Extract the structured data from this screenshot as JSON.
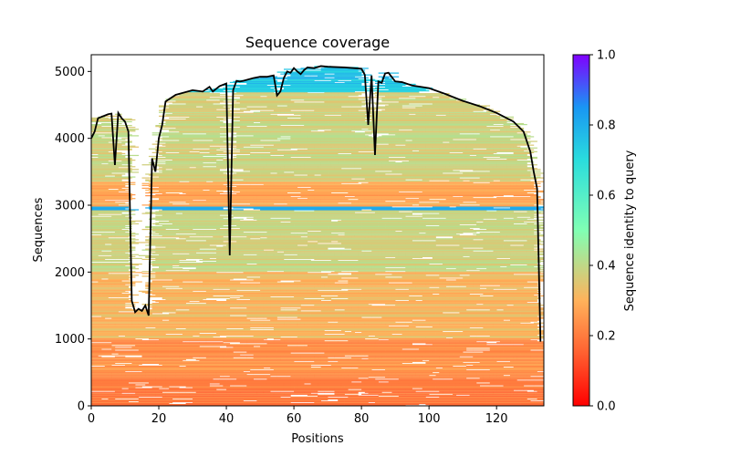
{
  "chart_data": {
    "type": "heatmap",
    "title": "Sequence coverage",
    "xlabel": "Positions",
    "ylabel": "Sequences",
    "xlim": [
      0,
      134
    ],
    "ylim": [
      0,
      5250
    ],
    "x_ticks": [
      0,
      20,
      40,
      60,
      80,
      100,
      120
    ],
    "y_ticks": [
      0,
      1000,
      2000,
      3000,
      4000,
      5000
    ],
    "grid": false,
    "legend": "none",
    "colorbar": {
      "label": "Sequence identity to query",
      "range": [
        0,
        1
      ],
      "ticks": [
        "0.0",
        "0.2",
        "0.4",
        "0.6",
        "0.8",
        "1.0"
      ],
      "colormap": "rainbow_r"
    },
    "identity_bands": [
      {
        "from_seq": 0,
        "to_seq": 400,
        "identity": 0.2
      },
      {
        "from_seq": 400,
        "to_seq": 1000,
        "identity": 0.24
      },
      {
        "from_seq": 1000,
        "to_seq": 2000,
        "identity": 0.31
      },
      {
        "from_seq": 2000,
        "to_seq": 2920,
        "identity": 0.38
      },
      {
        "from_seq": 2920,
        "to_seq": 2980,
        "identity": 0.8
      },
      {
        "from_seq": 2980,
        "to_seq": 3350,
        "identity": 0.28
      },
      {
        "from_seq": 3350,
        "to_seq": 4680,
        "identity": 0.38
      },
      {
        "from_seq": 4680,
        "to_seq": 5250,
        "identity": 0.75
      }
    ],
    "coverage_line": {
      "color": "#000000",
      "x": [
        0,
        1,
        2,
        3,
        4,
        5,
        6,
        7,
        8,
        9,
        10,
        11,
        12,
        13,
        14,
        15,
        16,
        17,
        18,
        19,
        20,
        21,
        22,
        25,
        30,
        33,
        35,
        36,
        38,
        40,
        41,
        42,
        43,
        44,
        45,
        48,
        50,
        52,
        54,
        55,
        56,
        57,
        58,
        59,
        60,
        61,
        62,
        63,
        64,
        66,
        68,
        70,
        75,
        80,
        81,
        82,
        83,
        84,
        85,
        86,
        87,
        88,
        90,
        92,
        95,
        100,
        105,
        110,
        115,
        120,
        125,
        128,
        130,
        131,
        132,
        133
      ],
      "y": [
        4000,
        4100,
        4300,
        4320,
        4340,
        4360,
        4370,
        3600,
        4380,
        4300,
        4250,
        4100,
        1570,
        1400,
        1450,
        1420,
        1500,
        1350,
        3700,
        3500,
        4000,
        4200,
        4550,
        4650,
        4720,
        4700,
        4770,
        4700,
        4780,
        4820,
        2250,
        4720,
        4860,
        4850,
        4860,
        4900,
        4920,
        4920,
        4940,
        4640,
        4700,
        4900,
        5000,
        4980,
        5050,
        5000,
        4960,
        5020,
        5060,
        5050,
        5080,
        5070,
        5060,
        5040,
        4950,
        4200,
        4940,
        3750,
        4850,
        4830,
        4970,
        4980,
        4850,
        4840,
        4790,
        4750,
        4660,
        4560,
        4480,
        4380,
        4250,
        4100,
        3800,
        3500,
        3250,
        960
      ]
    }
  }
}
